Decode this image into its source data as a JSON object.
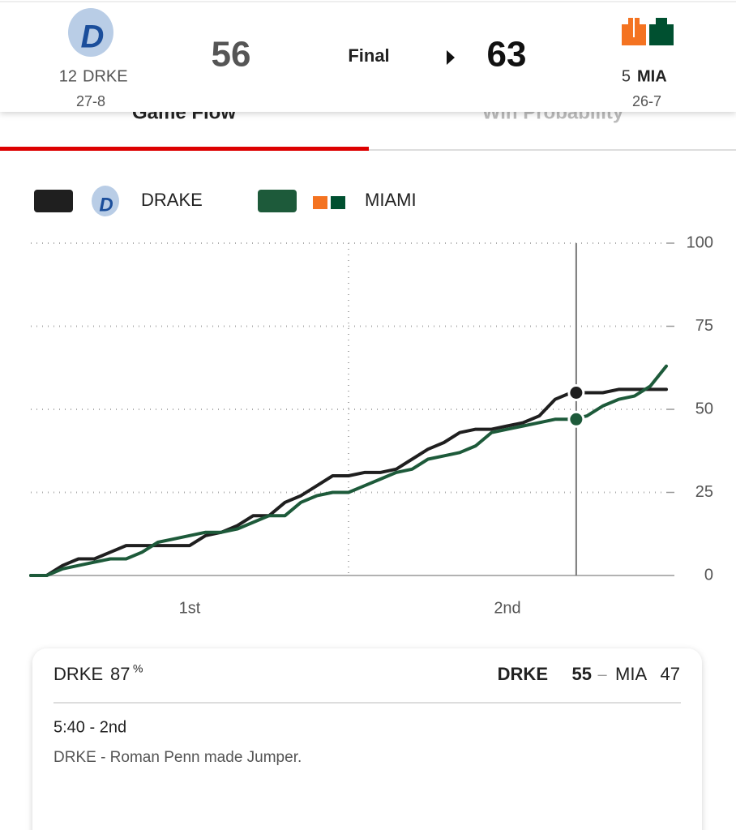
{
  "header": {
    "away": {
      "rank": "12",
      "abbr": "DRKE",
      "record": "27-8",
      "score": "56"
    },
    "status": "Final",
    "home": {
      "rank": "5",
      "abbr": "MIA",
      "record": "26-7",
      "score": "63"
    }
  },
  "tabs": [
    "Game Flow",
    "Win Probability"
  ],
  "chart_data": {
    "type": "line",
    "x": [
      0,
      1,
      2,
      3,
      4,
      5,
      6,
      7,
      8,
      9,
      10,
      11,
      12,
      13,
      14,
      15,
      16,
      17,
      18,
      19,
      20,
      21,
      22,
      23,
      24,
      25,
      26,
      27,
      28,
      29,
      30,
      31,
      32,
      33,
      34,
      35,
      36,
      37,
      38,
      39,
      40
    ],
    "series": [
      {
        "name": "DRAKE",
        "color": "#1f1f1f",
        "values": [
          0,
          0,
          3,
          5,
          5,
          7,
          9,
          9,
          9,
          9,
          9,
          12,
          13,
          15,
          18,
          18,
          22,
          24,
          27,
          30,
          30,
          31,
          31,
          32,
          35,
          38,
          40,
          43,
          44,
          44,
          45,
          46,
          48,
          53,
          55,
          55,
          55,
          56,
          56,
          56,
          56
        ]
      },
      {
        "name": "MIAMI",
        "color": "#1d5a3a",
        "values": [
          0,
          0,
          2,
          3,
          4,
          5,
          5,
          7,
          10,
          11,
          12,
          13,
          13,
          14,
          16,
          18,
          18,
          22,
          24,
          25,
          25,
          27,
          29,
          31,
          32,
          35,
          36,
          37,
          39,
          43,
          44,
          45,
          46,
          47,
          47,
          48,
          51,
          53,
          54,
          57,
          63
        ]
      }
    ],
    "xlim": [
      0,
      40
    ],
    "xticks": [
      {
        "value": 10,
        "label": "1st"
      },
      {
        "value": 30,
        "label": "2nd"
      }
    ],
    "ylim": [
      0,
      100
    ],
    "yticks": [
      0,
      25,
      50,
      75,
      100
    ],
    "grid": true,
    "marker_x": 34.33
  },
  "card": {
    "prob_team": "DRKE",
    "prob_value": "87",
    "prob_unit": "%",
    "away_abbr": "DRKE",
    "away_score": 55,
    "dash": "–",
    "home_abbr": "MIA",
    "home_score": 47,
    "time": "5:40 - 2nd",
    "play": "DRKE - Roman Penn made Jumper."
  }
}
